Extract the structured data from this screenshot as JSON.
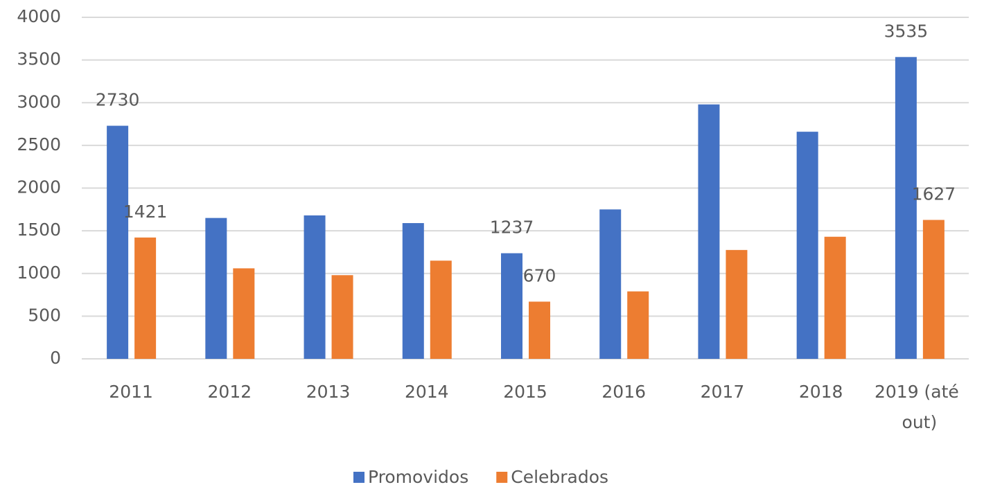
{
  "chart_data": {
    "type": "bar",
    "categories": [
      "2011",
      "2012",
      "2013",
      "2014",
      "2015",
      "2016",
      "2017",
      "2018",
      "2019 (até out)"
    ],
    "series": [
      {
        "name": "Promovidos",
        "color": "#4472c4",
        "values": [
          2730,
          1650,
          1680,
          1590,
          1237,
          1750,
          2980,
          2660,
          3535
        ],
        "value_labels": [
          "2730",
          null,
          null,
          null,
          "1237",
          null,
          null,
          null,
          "3535"
        ]
      },
      {
        "name": "Celebrados",
        "color": "#ed7d31",
        "values": [
          1421,
          1060,
          980,
          1150,
          670,
          790,
          1275,
          1430,
          1627
        ],
        "value_labels": [
          "1421",
          null,
          null,
          null,
          "670",
          null,
          null,
          null,
          "1627"
        ]
      }
    ],
    "ylim": [
      0,
      4000
    ],
    "yticks": [
      0,
      500,
      1000,
      1500,
      2000,
      2500,
      3000,
      3500,
      4000
    ],
    "grid": true,
    "legend": "bottom"
  }
}
